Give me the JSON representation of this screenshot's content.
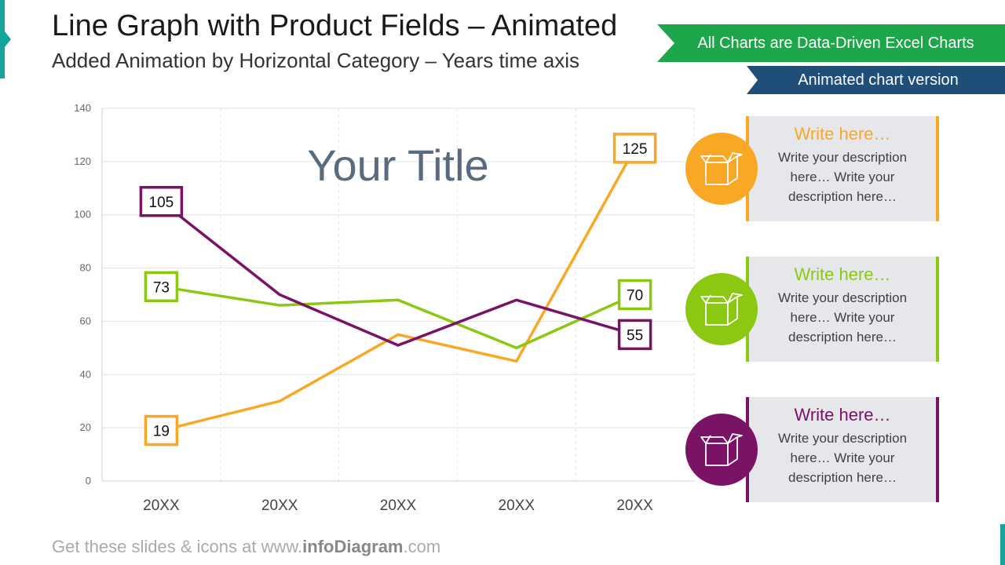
{
  "header": {
    "title": "Line Graph with Product Fields – Animated",
    "subtitle": "Added Animation by Horizontal Category – Years time axis"
  },
  "banners": {
    "data_driven": "All Charts are Data-Driven Excel Charts",
    "animated": "Animated chart version"
  },
  "colors": {
    "orange": "#f9a825",
    "green": "#8cc811",
    "purple": "#7a1266",
    "teal": "#16a39a",
    "banner_green": "#1ea64a",
    "banner_blue": "#1f4e79"
  },
  "chart_data": {
    "type": "line",
    "title": "Your Title",
    "categories": [
      "20XX",
      "20XX",
      "20XX",
      "20XX",
      "20XX"
    ],
    "ylim": [
      0,
      140
    ],
    "yticks": [
      0,
      20,
      40,
      60,
      80,
      100,
      120,
      140
    ],
    "grid": true,
    "series": [
      {
        "color": "#f9a825",
        "values": [
          19,
          30,
          55,
          45,
          125
        ],
        "labels": [
          {
            "index": 0,
            "text": "19"
          },
          {
            "index": 4,
            "text": "125"
          }
        ]
      },
      {
        "color": "#8cc811",
        "values": [
          73,
          66,
          68,
          50,
          70
        ],
        "labels": [
          {
            "index": 0,
            "text": "73"
          },
          {
            "index": 4,
            "text": "70"
          }
        ]
      },
      {
        "color": "#7a1266",
        "values": [
          105,
          70,
          51,
          68,
          55
        ],
        "labels": [
          {
            "index": 0,
            "text": "105"
          },
          {
            "index": 4,
            "text": "55"
          }
        ]
      }
    ]
  },
  "cards": [
    {
      "title": "Write here…",
      "desc": "Write your description here… Write your description here…",
      "color": "#f9a825",
      "icon": "box-icon"
    },
    {
      "title": "Write here…",
      "desc": "Write your description here… Write your description here…",
      "color": "#8cc811",
      "icon": "box-icon"
    },
    {
      "title": "Write here…",
      "desc": "Write your description here… Write your description here…",
      "color": "#7a1266",
      "icon": "box-icon"
    }
  ],
  "footer": {
    "prefix": "Get these slides & icons at www.",
    "brand": "infoDiagram",
    "suffix": ".com"
  }
}
